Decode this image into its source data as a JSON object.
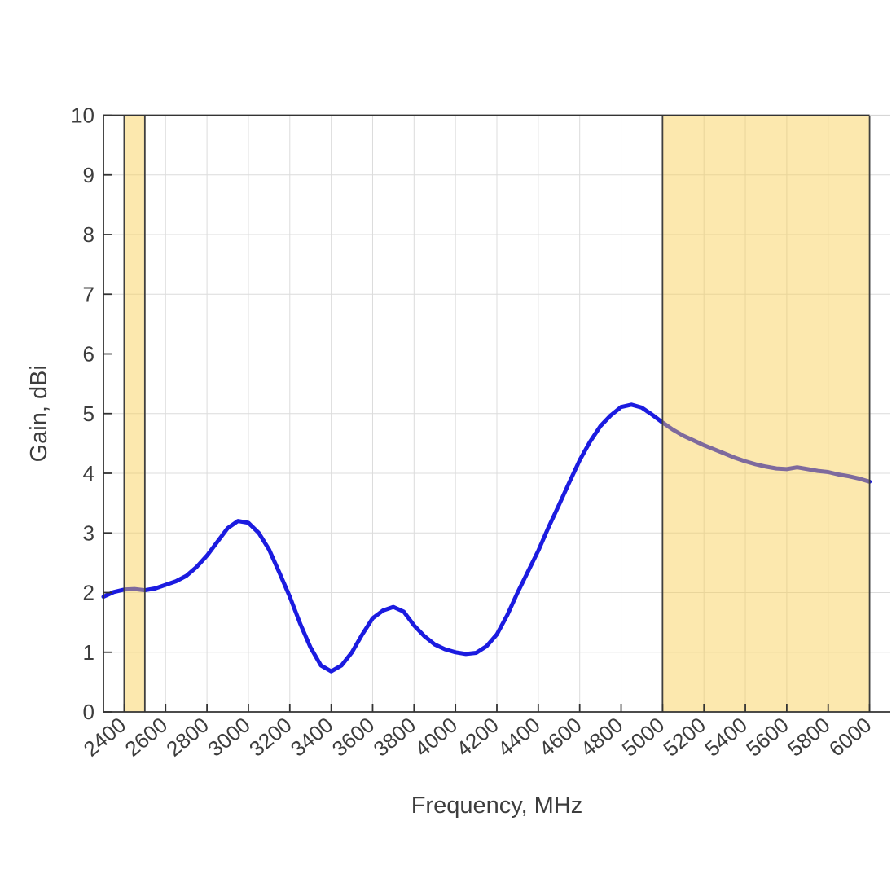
{
  "figure": {
    "background": "#ffffff"
  },
  "chart_data": {
    "type": "line",
    "title": "",
    "xlabel": "Frequency, MHz",
    "ylabel": "Gain, dBi",
    "xlim": [
      2300,
      6100
    ],
    "ylim": [
      0,
      10
    ],
    "grid": true,
    "legend": "none",
    "x_ticks": [
      2400,
      2600,
      2800,
      3000,
      3200,
      3400,
      3600,
      3800,
      4000,
      4200,
      4400,
      4600,
      4800,
      5000,
      5200,
      5400,
      5600,
      5800,
      6000
    ],
    "y_ticks": [
      0,
      1,
      2,
      3,
      4,
      5,
      6,
      7,
      8,
      9,
      10
    ],
    "x_tick_rotation_deg": -40,
    "series": [
      {
        "name": "gain",
        "color": "#1b1be0",
        "line_width": 5,
        "x": [
          2300,
          2350,
          2400,
          2450,
          2500,
          2550,
          2600,
          2650,
          2700,
          2750,
          2800,
          2850,
          2900,
          2950,
          3000,
          3050,
          3100,
          3150,
          3200,
          3250,
          3300,
          3350,
          3400,
          3450,
          3500,
          3550,
          3600,
          3650,
          3700,
          3750,
          3800,
          3850,
          3900,
          3950,
          4000,
          4050,
          4100,
          4150,
          4200,
          4250,
          4300,
          4350,
          4400,
          4450,
          4500,
          4550,
          4600,
          4650,
          4700,
          4750,
          4800,
          4850,
          4900,
          4950,
          5000,
          5050,
          5100,
          5150,
          5200,
          5250,
          5300,
          5350,
          5400,
          5450,
          5500,
          5550,
          5600,
          5650,
          5700,
          5750,
          5800,
          5850,
          5900,
          5950,
          6000
        ],
        "y": [
          1.93,
          2.01,
          2.05,
          2.06,
          2.04,
          2.07,
          2.13,
          2.19,
          2.28,
          2.43,
          2.62,
          2.85,
          3.08,
          3.2,
          3.17,
          3.0,
          2.72,
          2.33,
          1.93,
          1.48,
          1.08,
          0.78,
          0.68,
          0.78,
          1.0,
          1.3,
          1.57,
          1.7,
          1.76,
          1.68,
          1.45,
          1.27,
          1.13,
          1.05,
          1.0,
          0.97,
          0.99,
          1.1,
          1.3,
          1.62,
          2.0,
          2.35,
          2.7,
          3.1,
          3.47,
          3.85,
          4.22,
          4.53,
          4.79,
          4.97,
          5.11,
          5.15,
          5.1,
          4.98,
          4.85,
          4.73,
          4.63,
          4.55,
          4.47,
          4.4,
          4.33,
          4.26,
          4.2,
          4.15,
          4.11,
          4.08,
          4.07,
          4.1,
          4.07,
          4.04,
          4.02,
          3.98,
          3.95,
          3.91,
          3.86
        ]
      }
    ],
    "shaded_bands": [
      {
        "name": "band-2400-2500",
        "from": 2400,
        "to": 2500,
        "fill": "#f8cc4b",
        "fill_opacity": 0.45,
        "edge_color": "#3f3f3f"
      },
      {
        "name": "band-5000-6000",
        "from": 5000,
        "to": 6000,
        "fill": "#f8cc4b",
        "fill_opacity": 0.45,
        "edge_color": "#3f3f3f"
      }
    ],
    "colors": {
      "grid": "#dcdcdc",
      "axis": "#333333",
      "tick_label": "#3d3d3d",
      "axis_label": "#3d3d3d"
    }
  }
}
